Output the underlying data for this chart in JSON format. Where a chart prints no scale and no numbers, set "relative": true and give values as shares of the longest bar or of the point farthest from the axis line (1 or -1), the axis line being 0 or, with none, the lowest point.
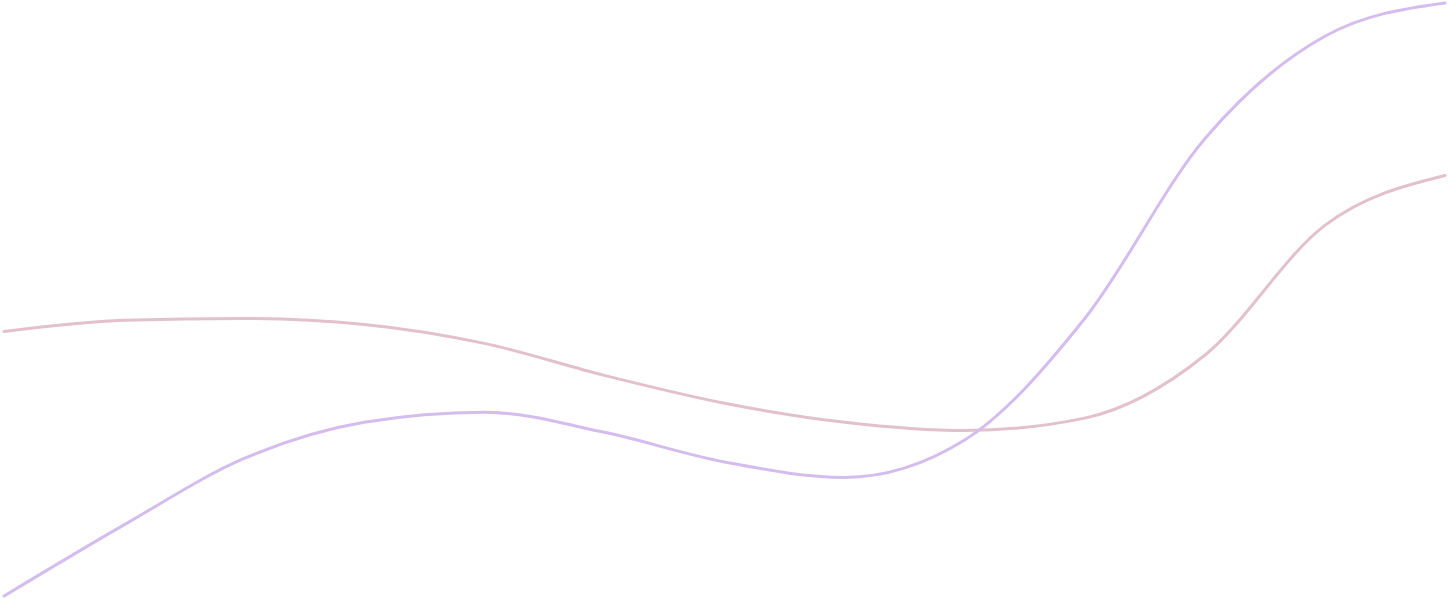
{
  "chart_data": {
    "type": "line",
    "relative": true,
    "categories": [
      null,
      null,
      null,
      null,
      null,
      null,
      null,
      null,
      null,
      null,
      null,
      null,
      null
    ],
    "series": [
      {
        "color": "#e2c0cc",
        "values": [
          0.446,
          0.465,
          0.468,
          0.458,
          0.426,
          0.372,
          0.325,
          0.293,
          0.279,
          0.3,
          0.406,
          0.625,
          0.709
        ]
      },
      {
        "color": "#d4bcef",
        "values": [
          0,
          0.12,
          0.232,
          0.293,
          0.31,
          0.276,
          0.226,
          0.2,
          0.263,
          0.468,
          0.771,
          0.944,
          1
        ]
      }
    ]
  }
}
